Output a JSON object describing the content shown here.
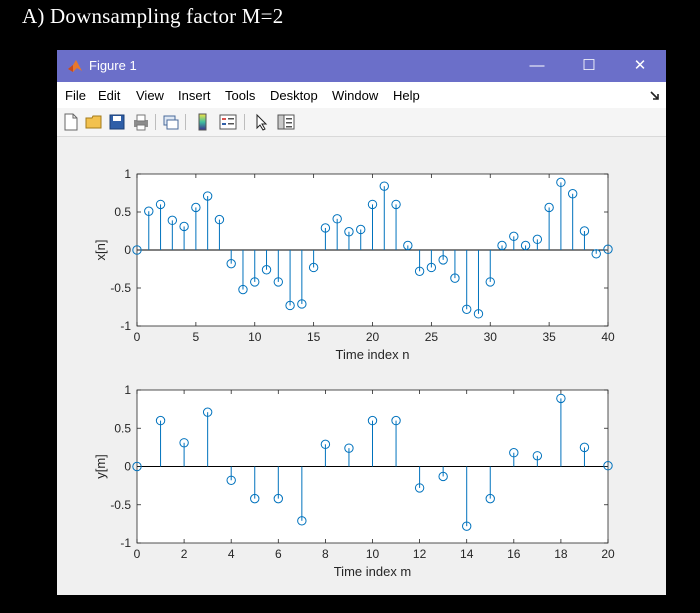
{
  "heading": "A) Downsampling factor M=2",
  "window": {
    "title": "Figure 1",
    "controls": {
      "minimize": "—",
      "maximize": "☐",
      "close": "✕"
    }
  },
  "menu": [
    "File",
    "Edit",
    "View",
    "Insert",
    "Tools",
    "Desktop",
    "Window",
    "Help"
  ],
  "toolbar_icons": [
    "new-figure-icon",
    "open-file-icon",
    "save-icon",
    "print-icon",
    "link-plot-icon",
    "colorbar-icon",
    "legend-icon",
    "pointer-icon",
    "property-editor-icon"
  ],
  "colors": {
    "stem": "#0072bd",
    "titlebar": "#6b6fc9"
  },
  "chart_data": [
    {
      "type": "stem",
      "xlabel": "Time index n",
      "ylabel": "x[n]",
      "xlim": [
        0,
        40
      ],
      "ylim": [
        -1,
        1
      ],
      "xticks": [
        0,
        5,
        10,
        15,
        20,
        25,
        30,
        35,
        40
      ],
      "yticks": [
        -1,
        -0.5,
        0,
        0.5,
        1
      ],
      "xtick_labels": [
        "0",
        "5",
        "10",
        "15",
        "20",
        "25",
        "30",
        "35",
        "40"
      ],
      "ytick_labels": [
        "-1",
        "-0.5",
        "0",
        "0.5",
        "1"
      ],
      "x": [
        0,
        1,
        2,
        3,
        4,
        5,
        6,
        7,
        8,
        9,
        10,
        11,
        12,
        13,
        14,
        15,
        16,
        17,
        18,
        19,
        20,
        21,
        22,
        23,
        24,
        25,
        26,
        27,
        28,
        29,
        30,
        31,
        32,
        33,
        34,
        35,
        36,
        37,
        38,
        39,
        40
      ],
      "values": [
        0,
        0.51,
        0.6,
        0.39,
        0.31,
        0.56,
        0.71,
        0.4,
        -0.18,
        -0.52,
        -0.42,
        -0.26,
        -0.42,
        -0.73,
        -0.71,
        -0.23,
        0.29,
        0.41,
        0.24,
        0.27,
        0.6,
        0.84,
        0.6,
        0.06,
        -0.28,
        -0.23,
        -0.13,
        -0.37,
        -0.78,
        -0.84,
        -0.42,
        0.06,
        0.18,
        0.06,
        0.14,
        0.56,
        0.89,
        0.74,
        0.25,
        -0.05,
        0.01
      ]
    },
    {
      "type": "stem",
      "xlabel": "Time index m",
      "ylabel": "y[m]",
      "xlim": [
        0,
        20
      ],
      "ylim": [
        -1,
        1
      ],
      "xticks": [
        0,
        2,
        4,
        6,
        8,
        10,
        12,
        14,
        16,
        18,
        20
      ],
      "yticks": [
        -1,
        -0.5,
        0,
        0.5,
        1
      ],
      "xtick_labels": [
        "0",
        "2",
        "4",
        "6",
        "8",
        "10",
        "12",
        "14",
        "16",
        "18",
        "20"
      ],
      "ytick_labels": [
        "-1",
        "-0.5",
        "0",
        "0.5",
        "1"
      ],
      "x": [
        0,
        1,
        2,
        3,
        4,
        5,
        6,
        7,
        8,
        9,
        10,
        11,
        12,
        13,
        14,
        15,
        16,
        17,
        18,
        19,
        20
      ],
      "values": [
        0,
        0.6,
        0.31,
        0.71,
        -0.18,
        -0.42,
        -0.42,
        -0.71,
        0.29,
        0.24,
        0.6,
        0.6,
        -0.28,
        -0.13,
        -0.78,
        -0.42,
        0.18,
        0.14,
        0.89,
        0.25,
        0.01
      ]
    }
  ]
}
